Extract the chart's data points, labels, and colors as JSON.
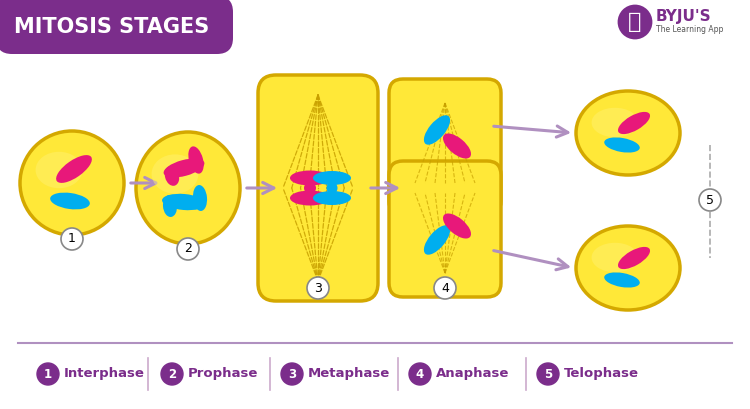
{
  "title": "MITOSIS STAGES",
  "title_bg_color": "#7B2D8B",
  "title_text_color": "#FFFFFF",
  "bg_color": "#FFFFFF",
  "yellow_cell": "#FFE838",
  "yellow_outline": "#D4A800",
  "pink_color": "#E8187A",
  "blue_color": "#00AEEF",
  "arrow_color": "#B090C0",
  "purple": "#7B2D8B",
  "bottom_line_color": "#B090C0",
  "stage_names": [
    "Interphase",
    "Prophase",
    "Metaphase",
    "Anaphase",
    "Telophase"
  ],
  "spindle_line_color": "#C8A000",
  "gray_circle": "#888888"
}
